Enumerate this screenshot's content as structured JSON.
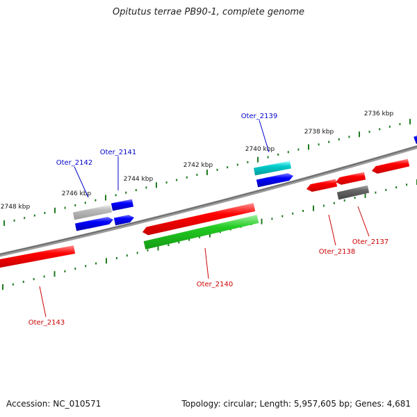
{
  "title": "Opitutus terrae PB90-1, complete genome",
  "footer": {
    "accession": "Accession: NC_010571",
    "summary": "Topology: circular; Length: 5,957,605 bp; Genes: 4,681"
  },
  "colors": {
    "backbone": "#808080",
    "tick": "#1f7a1f",
    "plus_label": "#0000cc",
    "minus_label": "#cc0000",
    "red": "#ff0000",
    "green": "#22cc22",
    "blue": "#0000ff",
    "cyan": "#00cccc",
    "gray": "#666666",
    "lightgray": "#bbbbbb"
  },
  "ruler_labels": [
    "2736 kbp",
    "2738 kbp",
    "2740 kbp",
    "2742 kbp",
    "2744 kbp",
    "2746 kbp",
    "2748 kbp"
  ],
  "gene_labels": [
    {
      "text": "Oter_2139",
      "strand": "plus"
    },
    {
      "text": "Oter_2141",
      "strand": "plus"
    },
    {
      "text": "Oter_2142",
      "strand": "plus"
    },
    {
      "text": "Oter_2140",
      "strand": "minus"
    },
    {
      "text": "Oter_2138",
      "strand": "minus"
    },
    {
      "text": "Oter_2137",
      "strand": "minus"
    },
    {
      "text": "Oter_2143",
      "strand": "minus"
    }
  ]
}
